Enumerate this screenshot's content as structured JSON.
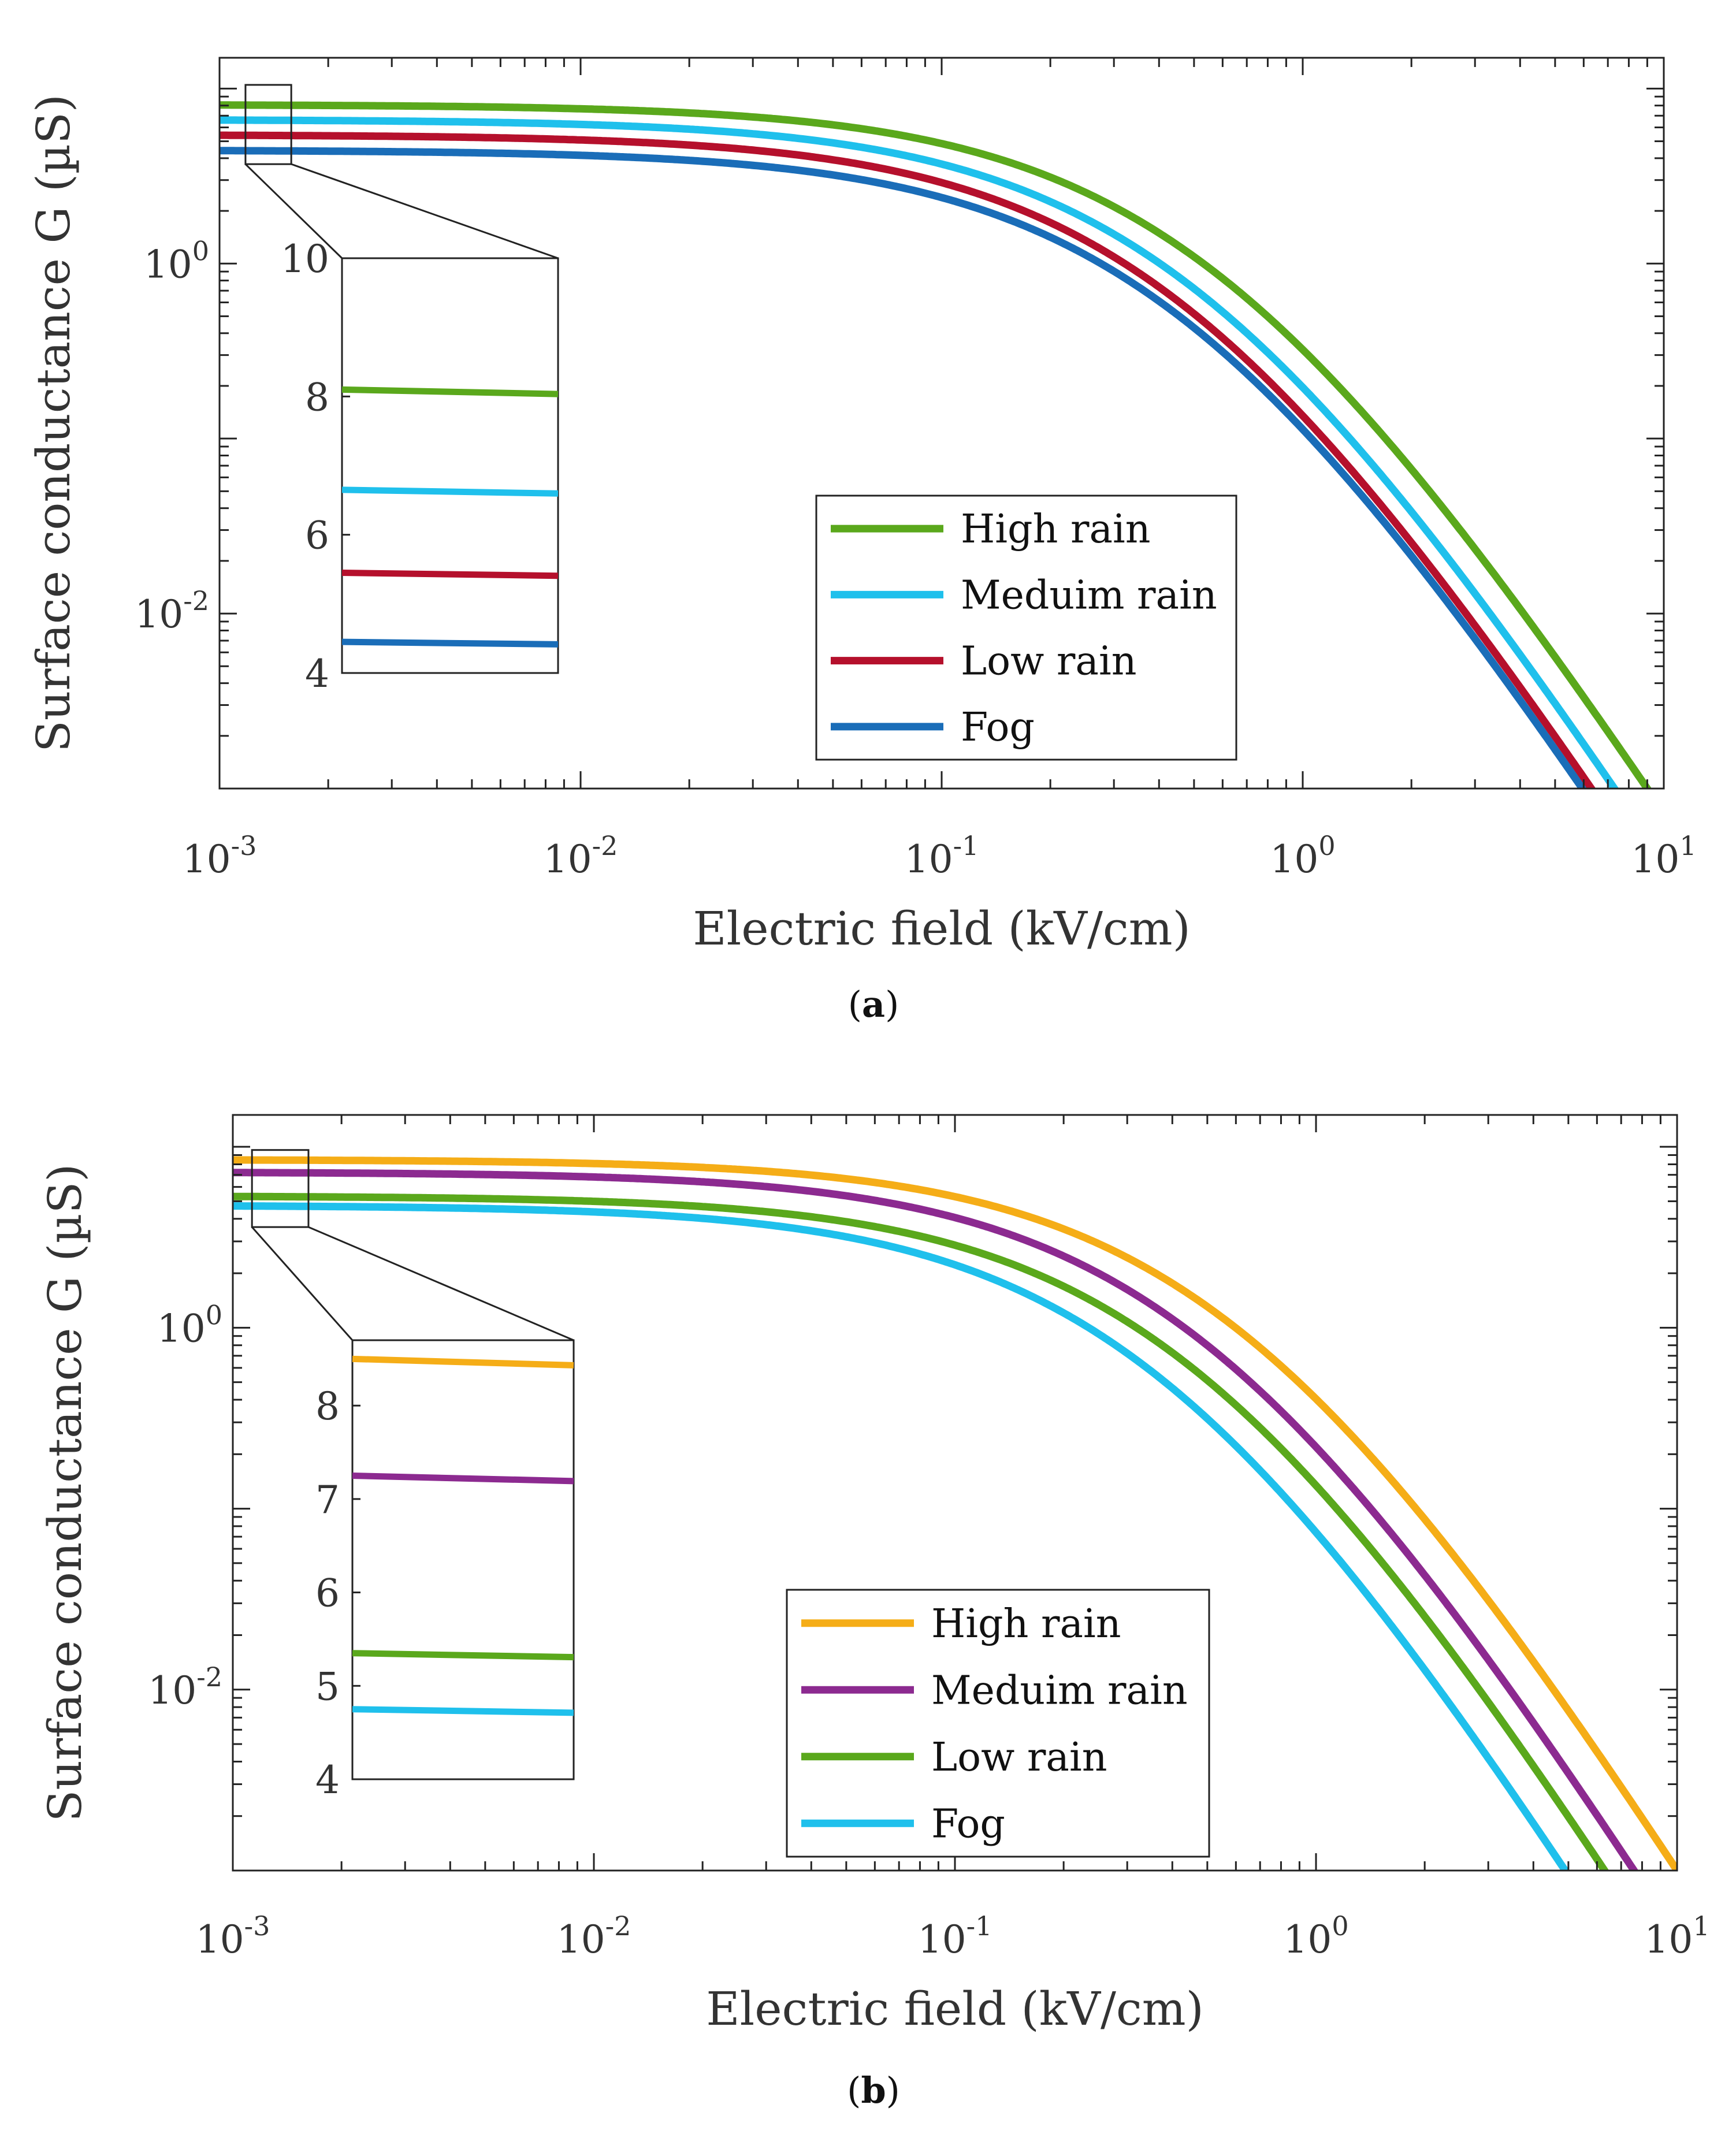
{
  "figure": {
    "panel_a_caption": "a",
    "panel_b_caption": "b"
  },
  "chart_data": [
    {
      "type": "line",
      "panel": "a",
      "xscale": "log",
      "yscale": "log",
      "xlabel": "Electric field (kV/cm)",
      "ylabel": "Surface conductance G (µS)",
      "xlim": [
        0.001,
        10
      ],
      "ylim": [
        0.001,
        15
      ],
      "x_ticks": [
        {
          "value": 0.001,
          "base": "10",
          "exp": "-3"
        },
        {
          "value": 0.01,
          "base": "10",
          "exp": "-2"
        },
        {
          "value": 0.1,
          "base": "10",
          "exp": "-1"
        },
        {
          "value": 1,
          "base": "10",
          "exp": "0"
        },
        {
          "value": 10,
          "base": "10",
          "exp": "1"
        }
      ],
      "y_ticks": [
        {
          "value": 1,
          "base": "10",
          "exp": "0"
        },
        {
          "value": 0.01,
          "base": "10",
          "exp": "-2"
        }
      ],
      "legend_position": "lower-right",
      "series": [
        {
          "name": "High rain",
          "color": "#5aa81c",
          "g0": 8.1,
          "xend": 9.0
        },
        {
          "name": "Meduim rain",
          "color": "#1fc0ec",
          "g0": 6.65,
          "xend": 7.3
        },
        {
          "name": "Low rain",
          "color": "#b5102c",
          "g0": 5.45,
          "xend": 6.3
        },
        {
          "name": "Fog",
          "color": "#1a6db8",
          "g0": 4.45,
          "xend": 5.95
        }
      ],
      "inset": {
        "zoom_x": [
          0.00118,
          0.00158
        ],
        "zoom_y": [
          3.7,
          10.5
        ],
        "ylim": [
          4,
          10
        ],
        "y_ticks": [
          "4",
          "6",
          "8",
          "10"
        ]
      }
    },
    {
      "type": "line",
      "panel": "b",
      "xscale": "log",
      "yscale": "log",
      "xlabel": "Electric field (kV/cm)",
      "ylabel": "Surface conductance G (µS)",
      "xlim": [
        0.001,
        10
      ],
      "ylim": [
        0.001,
        15
      ],
      "x_ticks": [
        {
          "value": 0.001,
          "base": "10",
          "exp": "-3"
        },
        {
          "value": 0.01,
          "base": "10",
          "exp": "-2"
        },
        {
          "value": 0.1,
          "base": "10",
          "exp": "-1"
        },
        {
          "value": 1,
          "base": "10",
          "exp": "0"
        },
        {
          "value": 10,
          "base": "10",
          "exp": "1"
        }
      ],
      "y_ticks": [
        {
          "value": 1,
          "base": "10",
          "exp": "0"
        },
        {
          "value": 0.01,
          "base": "10",
          "exp": "-2"
        }
      ],
      "legend_position": "lower-right",
      "series": [
        {
          "name": "High rain",
          "color": "#f5ad17",
          "g0": 8.5,
          "xend": 10.0
        },
        {
          "name": "Meduim rain",
          "color": "#8c2a90",
          "g0": 7.25,
          "xend": 7.6
        },
        {
          "name": "Low rain",
          "color": "#5aa81c",
          "g0": 5.35,
          "xend": 6.3
        },
        {
          "name": "Fog",
          "color": "#1fc0ec",
          "g0": 4.75,
          "xend": 4.9
        }
      ],
      "inset": {
        "zoom_x": [
          0.00113,
          0.00162
        ],
        "zoom_y": [
          3.6,
          9.6
        ],
        "ylim": [
          4,
          8.7
        ],
        "y_ticks": [
          "4",
          "5",
          "6",
          "7",
          "8"
        ]
      }
    }
  ]
}
